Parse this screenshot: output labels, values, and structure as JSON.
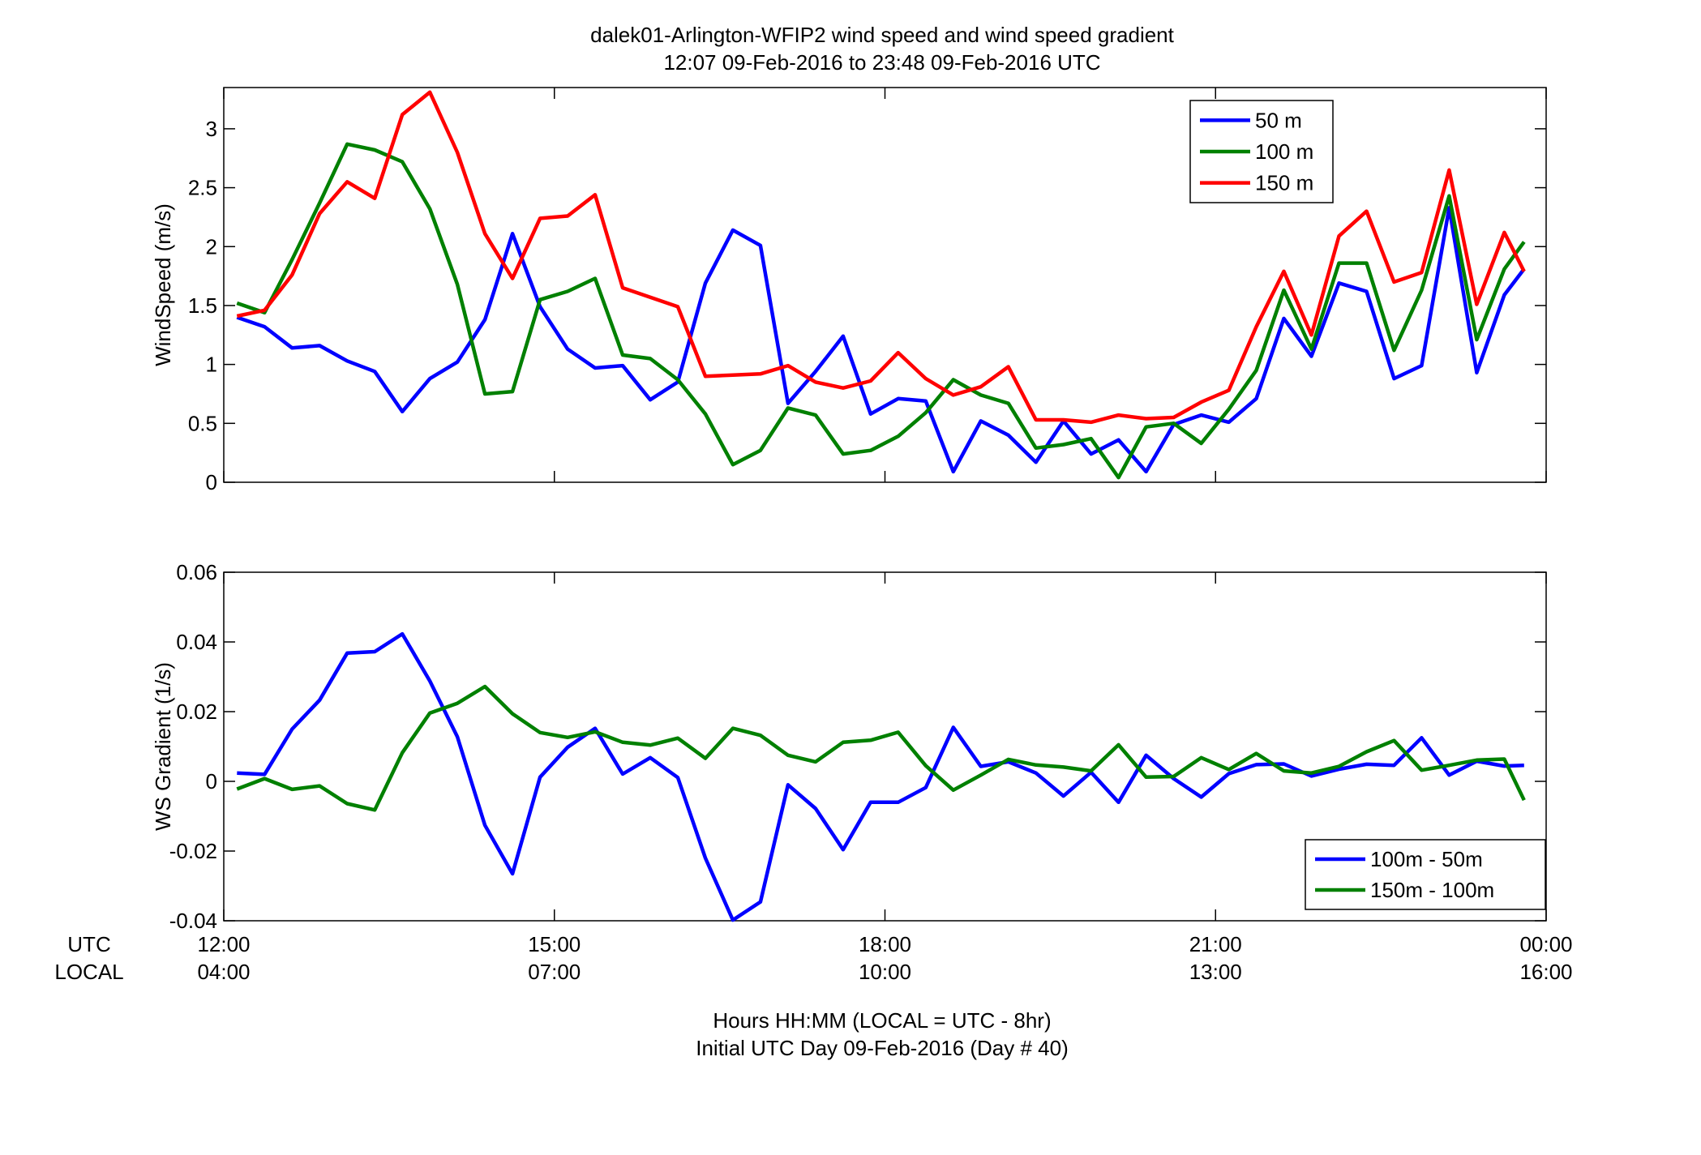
{
  "title": {
    "line1": "dalek01-Arlington-WFIP2  wind speed and wind speed gradient",
    "line2": "12:07 09-Feb-2016 to 23:48 09-Feb-2016  UTC"
  },
  "xaxis": {
    "utc_label": "UTC",
    "local_label": "LOCAL",
    "xlabel_line1": "Hours HH:MM  (LOCAL = UTC - 8hr)",
    "xlabel_line2": "Initial UTC Day 09-Feb-2016 (Day # 40)",
    "range": [
      12.0,
      24.0
    ],
    "ticks": [
      {
        "value": 12,
        "utc": "12:00",
        "local": "04:00"
      },
      {
        "value": 15,
        "utc": "15:00",
        "local": "07:00"
      },
      {
        "value": 18,
        "utc": "18:00",
        "local": "10:00"
      },
      {
        "value": 21,
        "utc": "21:00",
        "local": "13:00"
      },
      {
        "value": 24,
        "utc": "00:00",
        "local": "16:00"
      }
    ]
  },
  "chart_data": [
    {
      "type": "line",
      "ylabel": "WindSpeed (m/s)",
      "ylim": [
        0,
        3.35
      ],
      "yticks": [
        0,
        0.5,
        1,
        1.5,
        2,
        2.5,
        3
      ],
      "ytick_labels": [
        "0",
        "0.5",
        "1",
        "1.5",
        "2",
        "2.5",
        "3"
      ],
      "legend_position": "top-right",
      "x": [
        12.12,
        12.37,
        12.62,
        12.87,
        13.12,
        13.37,
        13.62,
        13.87,
        14.12,
        14.37,
        14.62,
        14.87,
        15.12,
        15.37,
        15.62,
        15.87,
        16.12,
        16.37,
        16.62,
        16.87,
        17.12,
        17.37,
        17.62,
        17.87,
        18.12,
        18.37,
        18.62,
        18.87,
        19.12,
        19.37,
        19.62,
        19.87,
        20.12,
        20.37,
        20.62,
        20.87,
        21.12,
        21.37,
        21.62,
        21.87,
        22.12,
        22.37,
        22.62,
        22.87,
        23.12,
        23.37,
        23.62,
        23.8
      ],
      "series": [
        {
          "name": "50 m",
          "color": "#0000ff",
          "values": [
            1.4,
            1.32,
            1.14,
            1.16,
            1.03,
            0.94,
            0.6,
            0.88,
            1.02,
            1.38,
            2.11,
            1.49,
            1.13,
            0.97,
            0.99,
            0.7,
            0.85,
            1.69,
            2.14,
            2.01,
            0.67,
            0.94,
            1.24,
            0.58,
            0.71,
            0.69,
            0.09,
            0.52,
            0.4,
            0.17,
            0.52,
            0.24,
            0.36,
            0.09,
            0.49,
            0.57,
            0.51,
            0.71,
            1.39,
            1.07,
            1.69,
            1.62,
            0.88,
            0.99,
            2.33,
            0.93,
            1.59,
            1.81
          ]
        },
        {
          "name": "100 m",
          "color": "#008000",
          "values": [
            1.52,
            1.44,
            1.89,
            2.37,
            2.87,
            2.82,
            2.72,
            2.32,
            1.68,
            0.75,
            0.77,
            1.55,
            1.62,
            1.73,
            1.08,
            1.05,
            0.87,
            0.58,
            0.15,
            0.27,
            0.63,
            0.57,
            0.24,
            0.27,
            0.39,
            0.59,
            0.87,
            0.74,
            0.67,
            0.29,
            0.32,
            0.37,
            0.04,
            0.47,
            0.5,
            0.33,
            0.62,
            0.95,
            1.63,
            1.13,
            1.86,
            1.86,
            1.12,
            1.63,
            2.43,
            1.21,
            1.81,
            2.04
          ]
        },
        {
          "name": "150 m",
          "color": "#ff0000",
          "values": [
            1.41,
            1.46,
            1.76,
            2.28,
            2.55,
            2.41,
            3.12,
            3.31,
            2.8,
            2.11,
            1.73,
            2.24,
            2.26,
            2.44,
            1.65,
            1.57,
            1.49,
            0.9,
            0.91,
            0.92,
            0.99,
            0.85,
            0.8,
            0.86,
            1.1,
            0.88,
            0.74,
            0.81,
            0.98,
            0.53,
            0.53,
            0.51,
            0.57,
            0.54,
            0.55,
            0.68,
            0.78,
            1.32,
            1.79,
            1.25,
            2.09,
            2.3,
            1.7,
            1.78,
            2.65,
            1.51,
            2.12,
            1.79
          ]
        }
      ]
    },
    {
      "type": "line",
      "ylabel": "WS Gradient (1/s)",
      "ylim": [
        -0.04,
        0.06
      ],
      "yticks": [
        -0.04,
        -0.02,
        0,
        0.02,
        0.04,
        0.06
      ],
      "ytick_labels": [
        "-0.04",
        "-0.02",
        "0",
        "0.02",
        "0.04",
        "0.06"
      ],
      "legend_position": "bottom-right",
      "x": [
        12.12,
        12.37,
        12.62,
        12.87,
        13.12,
        13.37,
        13.62,
        13.87,
        14.12,
        14.37,
        14.62,
        14.87,
        15.12,
        15.37,
        15.62,
        15.87,
        16.12,
        16.37,
        16.62,
        16.87,
        17.12,
        17.37,
        17.62,
        17.87,
        18.12,
        18.37,
        18.62,
        18.87,
        19.12,
        19.37,
        19.62,
        19.87,
        20.12,
        20.37,
        20.62,
        20.87,
        21.12,
        21.37,
        21.62,
        21.87,
        22.12,
        22.37,
        22.62,
        22.87,
        23.12,
        23.37,
        23.62,
        23.8
      ],
      "series": [
        {
          "name": "100m - 50m",
          "color": "#0000ff",
          "values": [
            0.0024,
            0.002,
            0.015,
            0.0233,
            0.0368,
            0.0372,
            0.0423,
            0.0288,
            0.0128,
            -0.0126,
            -0.0265,
            0.0012,
            0.0098,
            0.0152,
            0.0021,
            0.0068,
            0.0011,
            -0.022,
            -0.0398,
            -0.0346,
            -0.001,
            -0.0078,
            -0.0196,
            -0.006,
            -0.006,
            -0.0018,
            0.0155,
            0.0043,
            0.0056,
            0.0024,
            -0.0042,
            0.0026,
            -0.006,
            0.0075,
            0.0008,
            -0.0045,
            0.0022,
            0.0048,
            0.005,
            0.0015,
            0.0035,
            0.0049,
            0.0046,
            0.0125,
            0.0018,
            0.0058,
            0.0044,
            0.0046
          ]
        },
        {
          "name": "150m - 100m",
          "color": "#008000",
          "values": [
            -0.0022,
            0.0008,
            -0.0023,
            -0.0013,
            -0.0064,
            -0.0082,
            0.0082,
            0.0196,
            0.0224,
            0.0272,
            0.0194,
            0.014,
            0.0126,
            0.0142,
            0.0112,
            0.0104,
            0.0124,
            0.0066,
            0.0152,
            0.0132,
            0.0075,
            0.0056,
            0.0112,
            0.0118,
            0.0141,
            0.0045,
            -0.0025,
            0.0018,
            0.0063,
            0.0047,
            0.0041,
            0.003,
            0.0105,
            0.0012,
            0.0014,
            0.0068,
            0.0034,
            0.008,
            0.003,
            0.0024,
            0.0043,
            0.0085,
            0.0117,
            0.0032,
            0.0046,
            0.0061,
            0.0064,
            -0.0054
          ]
        }
      ]
    }
  ]
}
